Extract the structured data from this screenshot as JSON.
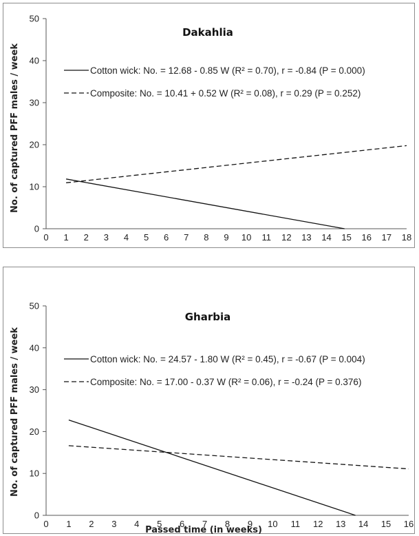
{
  "chart_data": [
    {
      "type": "line",
      "title": "Dakahlia",
      "ylabel": "No. of captured PFF males / week",
      "xlabel": "",
      "ylim": [
        0,
        50
      ],
      "yticks": [
        "0",
        "10",
        "20",
        "30",
        "40",
        "50"
      ],
      "xlim": [
        0,
        18
      ],
      "xticks": [
        "0",
        "1",
        "2",
        "3",
        "4",
        "5",
        "6",
        "7",
        "8",
        "9",
        "10",
        "11",
        "12",
        "13",
        "14",
        "15",
        "16",
        "17",
        "18"
      ],
      "grid": false,
      "legend_position": "top-right",
      "series": [
        {
          "legend": "Cotton wick: No. = 12.68 - 0.85 W (R² = 0.70), r = -0.84 (P = 0.000)",
          "style": "solid",
          "x": [
            1,
            14.9
          ],
          "y": [
            11.83,
            0
          ]
        },
        {
          "legend": "Composite: No. = 10.41 + 0.52 W (R² = 0.08), r = 0.29 (P = 0.252)",
          "style": "dashed",
          "x": [
            1,
            18
          ],
          "y": [
            10.93,
            19.77
          ]
        }
      ]
    },
    {
      "type": "line",
      "title": "Gharbia",
      "ylabel": "No. of captured PFF males / week",
      "xlabel": "Passed time (in weeks)",
      "ylim": [
        0,
        50
      ],
      "yticks": [
        "0",
        "10",
        "20",
        "30",
        "40",
        "50"
      ],
      "xlim": [
        0,
        16
      ],
      "xticks": [
        "0",
        "1",
        "2",
        "3",
        "4",
        "5",
        "6",
        "7",
        "8",
        "9",
        "10",
        "11",
        "12",
        "13",
        "14",
        "15",
        "16"
      ],
      "grid": false,
      "legend_position": "top-right",
      "series": [
        {
          "legend": "Cotton wick: No. = 24.57 - 1.80 W (R² = 0.45), r = -0.67 (P = 0.004)",
          "style": "solid",
          "x": [
            1,
            13.65
          ],
          "y": [
            22.77,
            0
          ]
        },
        {
          "legend": "Composite: No. = 17.00 - 0.37 W (R² = 0.06), r = -0.24 (P = 0.376)",
          "style": "dashed",
          "x": [
            1,
            16
          ],
          "y": [
            16.63,
            11.08
          ]
        }
      ]
    }
  ]
}
